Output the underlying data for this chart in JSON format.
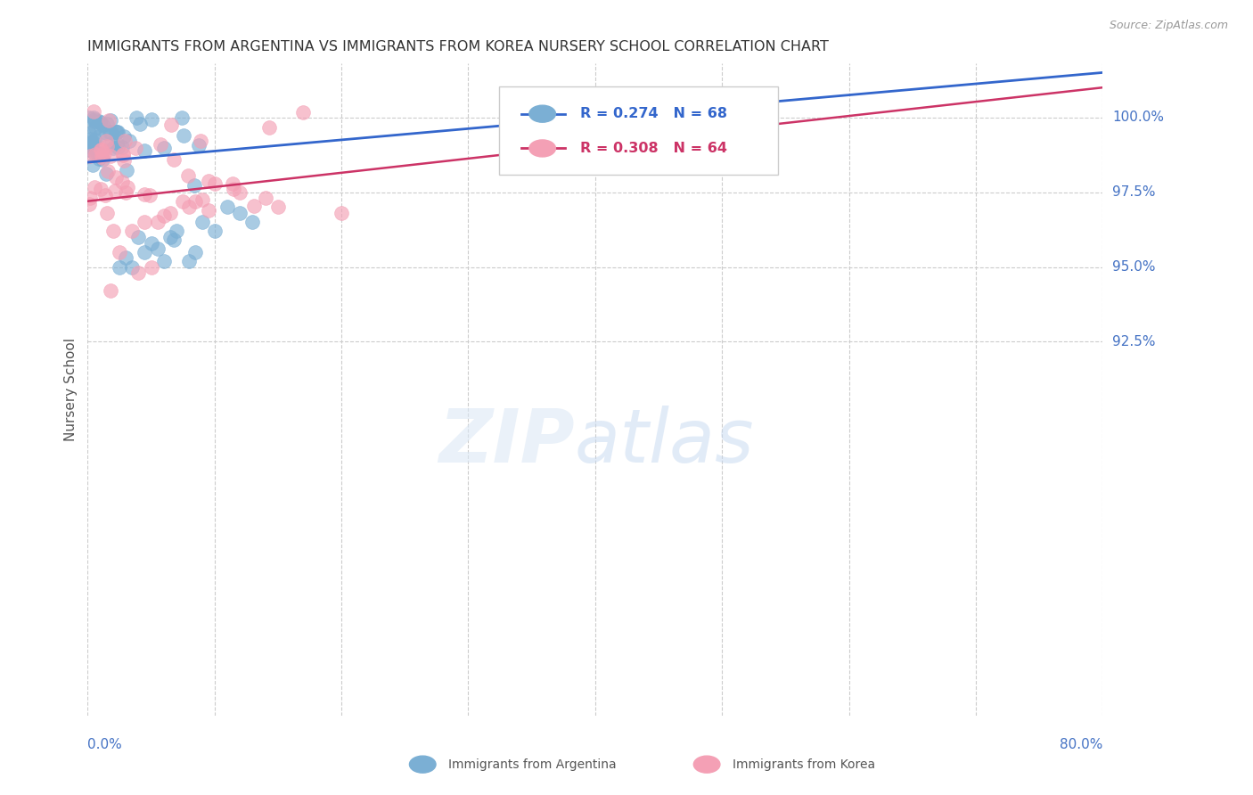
{
  "title": "IMMIGRANTS FROM ARGENTINA VS IMMIGRANTS FROM KOREA NURSERY SCHOOL CORRELATION CHART",
  "source": "Source: ZipAtlas.com",
  "ylabel": "Nursery School",
  "xlim": [
    0.0,
    80.0
  ],
  "ylim": [
    80.0,
    101.8
  ],
  "argentina_color": "#7bafd4",
  "korea_color": "#f4a0b5",
  "argentina_line_color": "#3366cc",
  "korea_line_color": "#cc3366",
  "background_color": "#ffffff",
  "grid_color": "#cccccc",
  "axis_label_color": "#4472c4",
  "title_color": "#333333",
  "ytick_vals": [
    100.0,
    97.5,
    95.0,
    92.5
  ],
  "argentina_trend": [
    0.0,
    98.5,
    80.0,
    101.5
  ],
  "korea_trend": [
    0.0,
    97.2,
    80.0,
    101.0
  ]
}
